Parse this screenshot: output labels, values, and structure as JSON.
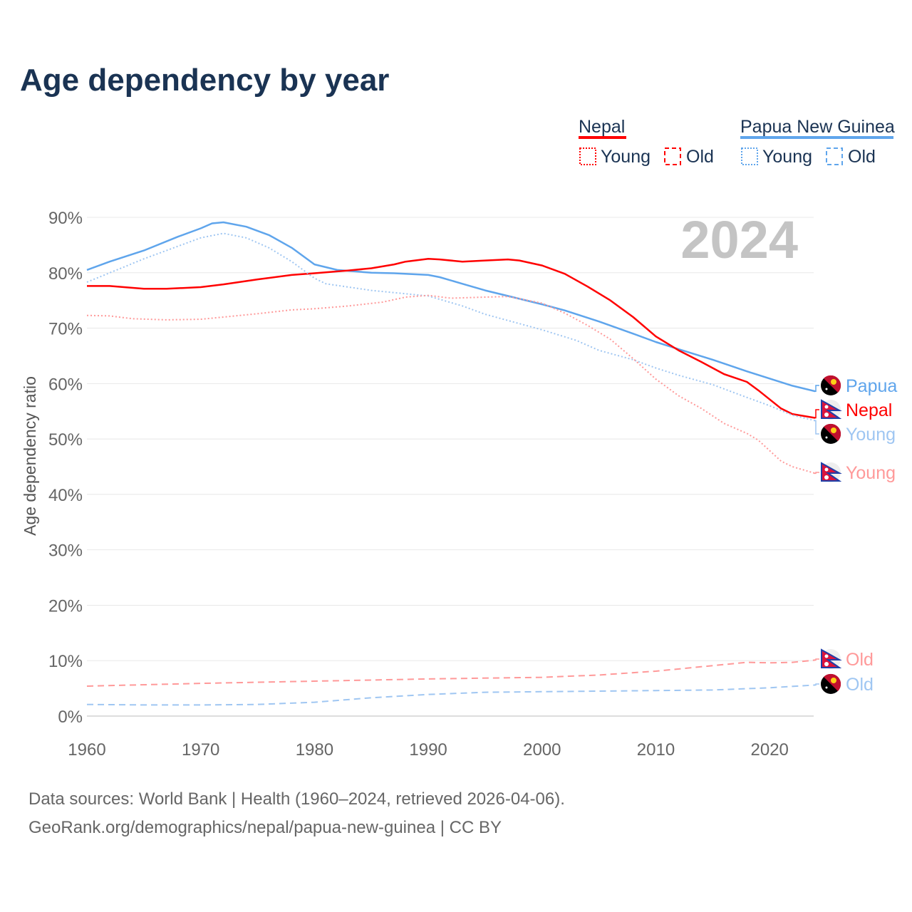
{
  "title": "Age dependency by year",
  "year_badge": "2024",
  "legend": {
    "nepal": "Nepal",
    "png": "Papua New Guinea",
    "young": "Young",
    "old": "Old"
  },
  "source_line1": "Data sources: World Bank | Health (1960–2024, retrieved 2026-04-06).",
  "source_line2": "GeoRank.org/demographics/nepal/papua-new-guinea | CC BY",
  "colors": {
    "nepal": "#ff0000",
    "nepal_light": "#ff9999",
    "png": "#5fa5ec",
    "png_light": "#9fc6f2",
    "text": "#1a3353"
  },
  "chart_data": {
    "type": "line",
    "title": "Age dependency by year",
    "xlabel": "",
    "ylabel": "Age dependency ratio",
    "xlim": [
      1960,
      2024
    ],
    "ylim": [
      0,
      90
    ],
    "xticks": [
      1960,
      1970,
      1980,
      1990,
      2000,
      2010,
      2020
    ],
    "yticks": [
      "0%",
      "10%",
      "20%",
      "30%",
      "40%",
      "50%",
      "60%",
      "70%",
      "80%",
      "90%"
    ],
    "series": [
      {
        "name": "Papua",
        "country": "png",
        "style": "solid",
        "label": "Papua",
        "label_color": "#5fa5ec",
        "x": [
          1960,
          1962,
          1965,
          1968,
          1970,
          1971,
          1972,
          1974,
          1976,
          1978,
          1980,
          1982,
          1985,
          1987,
          1990,
          1991,
          1993,
          1995,
          1997,
          2000,
          2002,
          2005,
          2008,
          2010,
          2012,
          2015,
          2018,
          2020,
          2022,
          2024
        ],
        "y": [
          80.5,
          82,
          84,
          86.5,
          88,
          88.9,
          89.1,
          88.3,
          86.8,
          84.5,
          81.5,
          80.5,
          80,
          79.9,
          79.6,
          79.2,
          78,
          76.8,
          75.8,
          74.3,
          73.2,
          71.2,
          69,
          67.5,
          66.2,
          64.3,
          62.2,
          60.9,
          59.6,
          58.6
        ]
      },
      {
        "name": "Nepal",
        "country": "nepal",
        "style": "solid",
        "label": "Nepal",
        "label_color": "#ff0000",
        "x": [
          1960,
          1962,
          1965,
          1967,
          1970,
          1972,
          1975,
          1978,
          1980,
          1983,
          1985,
          1987,
          1988,
          1990,
          1991,
          1993,
          1995,
          1997,
          1998,
          2000,
          2002,
          2004,
          2006,
          2008,
          2010,
          2012,
          2014,
          2016,
          2018,
          2019,
          2021,
          2022,
          2024
        ],
        "y": [
          77.6,
          77.6,
          77.1,
          77.1,
          77.4,
          77.9,
          78.8,
          79.6,
          79.9,
          80.4,
          80.8,
          81.5,
          82,
          82.5,
          82.4,
          82,
          82.2,
          82.4,
          82.2,
          81.3,
          79.8,
          77.5,
          75,
          72,
          68.5,
          66,
          63.9,
          61.7,
          60.3,
          58.8,
          55.5,
          54.5,
          53.8
        ]
      },
      {
        "name": "Papua New Guinea Young",
        "country": "png",
        "style": "dotted",
        "label": "Young",
        "label_color": "#9fc6f2",
        "x": [
          1960,
          1965,
          1970,
          1972,
          1974,
          1976,
          1978,
          1980,
          1981,
          1985,
          1990,
          1993,
          1995,
          2000,
          2003,
          2005,
          2008,
          2010,
          2012,
          2015,
          2018,
          2020,
          2022,
          2024
        ],
        "y": [
          78.3,
          82.5,
          86.3,
          87.1,
          86.3,
          84.5,
          82,
          79,
          78,
          76.8,
          75.8,
          74,
          72.5,
          69.7,
          67.8,
          66,
          64.3,
          62.8,
          61.5,
          59.8,
          57.5,
          56,
          54.3,
          53.3
        ]
      },
      {
        "name": "Nepal Young",
        "country": "nepal",
        "style": "dotted",
        "label": "Young",
        "label_color": "#ff9999",
        "x": [
          1960,
          1962,
          1964,
          1967,
          1970,
          1972,
          1975,
          1978,
          1980,
          1983,
          1986,
          1988,
          1990,
          1992,
          1995,
          1997,
          2000,
          2002,
          2004,
          2006,
          2008,
          2010,
          2012,
          2014,
          2016,
          2018,
          2019,
          2021,
          2022,
          2024
        ],
        "y": [
          72.3,
          72.2,
          71.7,
          71.5,
          71.6,
          72,
          72.6,
          73.3,
          73.5,
          74,
          74.7,
          75.6,
          75.9,
          75.4,
          75.6,
          75.7,
          74.5,
          72.7,
          70.5,
          68,
          64.5,
          60.8,
          57.8,
          55.5,
          52.8,
          51,
          49.8,
          46,
          45,
          43.8
        ]
      },
      {
        "name": "Nepal Old",
        "country": "nepal",
        "style": "dashed",
        "label": "Old",
        "label_color": "#ff9999",
        "x": [
          1960,
          1970,
          1980,
          1990,
          2000,
          2005,
          2010,
          2015,
          2018,
          2020,
          2022,
          2024
        ],
        "y": [
          5.4,
          5.9,
          6.3,
          6.7,
          7.0,
          7.4,
          8.1,
          9.1,
          9.7,
          9.6,
          9.7,
          10.1
        ]
      },
      {
        "name": "Papua New Guinea Old",
        "country": "png",
        "style": "dashed",
        "label": "Old",
        "label_color": "#9fc6f2",
        "x": [
          1960,
          1965,
          1970,
          1975,
          1980,
          1985,
          1990,
          1995,
          2000,
          2010,
          2015,
          2020,
          2024
        ],
        "y": [
          2.1,
          2.0,
          2.0,
          2.1,
          2.5,
          3.3,
          3.9,
          4.3,
          4.4,
          4.6,
          4.7,
          5.1,
          5.6
        ]
      }
    ]
  }
}
